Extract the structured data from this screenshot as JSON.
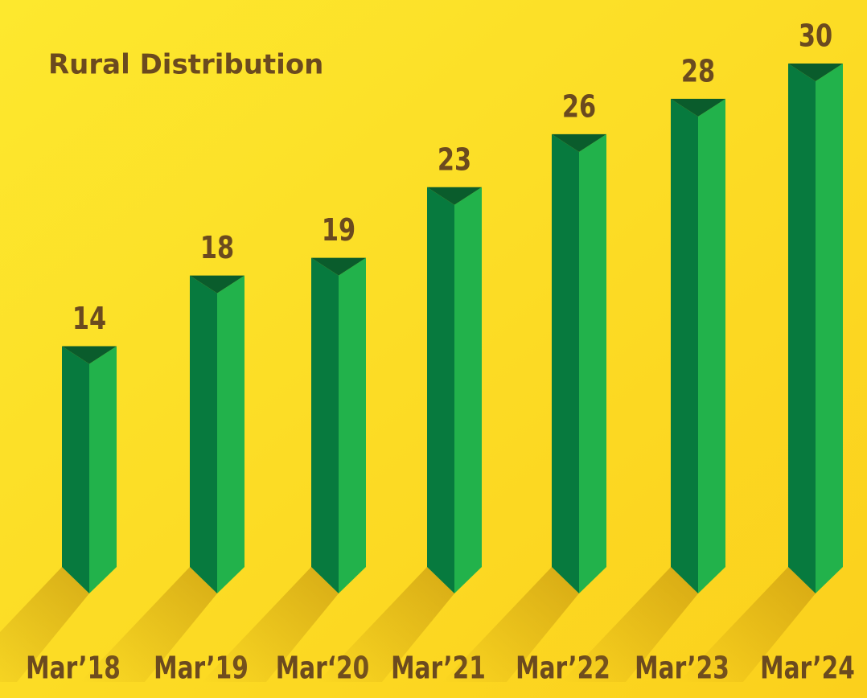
{
  "chart_data": {
    "type": "bar",
    "title": "Rural Distribution",
    "categories": [
      "Mar’18",
      "Mar’19",
      "Mar‘20",
      "Mar’21",
      "Mar’22",
      "Mar’23",
      "Mar’24"
    ],
    "values": [
      14,
      18,
      19,
      23,
      26,
      28,
      30
    ],
    "color": "#22b24b"
  }
}
